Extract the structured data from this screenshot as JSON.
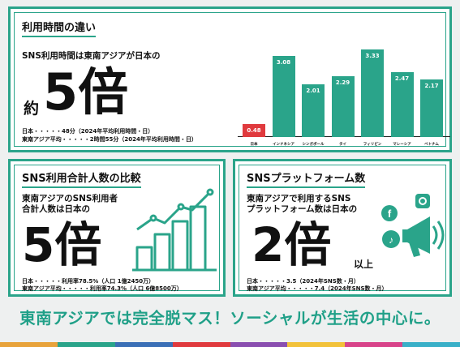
{
  "panel1": {
    "title": "利用時間の違い",
    "lead": "SNS利用時間は東南アジアが日本の",
    "prefix": "約",
    "big": "5倍",
    "note1": "日本・・・・・48分（2024年平均利用時間・日）",
    "note2": "東南アジア平均・・・・・2時間55分（2024年平均利用時間・日）"
  },
  "chart_data": {
    "type": "bar",
    "categories": [
      "日本",
      "インドネシア",
      "シンガポール",
      "タイ",
      "フィリピン",
      "マレーシア",
      "ベトナム"
    ],
    "values": [
      0.48,
      3.08,
      2.01,
      2.29,
      3.33,
      2.47,
      2.17
    ],
    "value_labels": [
      "0.48",
      "3.08",
      "2.01",
      "2.29",
      "3.33",
      "2.47",
      "2.17"
    ],
    "colors": [
      "#e03a3e",
      "#2aa48a",
      "#2aa48a",
      "#2aa48a",
      "#2aa48a",
      "#2aa48a",
      "#2aa48a"
    ],
    "ylim": [
      0,
      3.5
    ]
  },
  "panel2": {
    "title": "SNS利用合計人数の比較",
    "lead1": "東南アジアのSNS利用者",
    "lead2": "合計人数は日本の",
    "big": "5倍",
    "note1": "日本・・・・・利用率78.5%（人口 1億2450万）",
    "note2": "東南アジア平均・・・・・利用率74.3%（人口 6億8500万）"
  },
  "panel3": {
    "title": "SNSプラットフォーム数",
    "lead1": "東南アジアで利用するSNS",
    "lead2": "プラットフォーム数は日本の",
    "big": "2倍",
    "suffix": "以上",
    "note1": "日本・・・・・3.5（2024年SNS数・月）",
    "note2": "東南アジア平均・・・・・7.4（2024年SNS数・月）"
  },
  "footer": "東南アジアでは完全脱マス！ソーシャルが生活の中心に。",
  "colors": {
    "accent": "#2aa48a",
    "japan_bar": "#e03a3e",
    "stripe": [
      "#e8a33b",
      "#2aa48a",
      "#3b6fb6",
      "#e03a3e",
      "#8a4fb0",
      "#f2c23a",
      "#d8448a",
      "#3ab0c8"
    ]
  }
}
